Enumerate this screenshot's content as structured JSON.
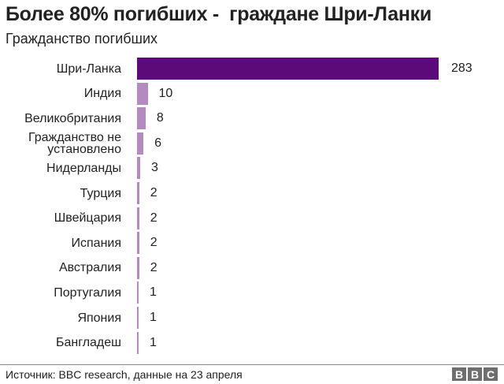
{
  "header": {
    "title": "Более 80% погибших -  граждане Шри-Ланки",
    "subtitle": "Гражданство погибших"
  },
  "footer": {
    "source": "Источник: BBC research, данные на 23 апреля",
    "logo": [
      "B",
      "B",
      "C"
    ]
  },
  "colors": {
    "highlight": "#5c0a7a",
    "other": "#b48bc0"
  },
  "chart_data": {
    "type": "bar",
    "orientation": "horizontal",
    "title": "Более 80% погибших -  граждане Шри-Ланки",
    "subtitle": "Гражданство погибших",
    "xlabel": "",
    "ylabel": "",
    "categories": [
      "Шри-Ланка",
      "Индия",
      "Великобритания",
      "Гражданство не установлено",
      "Нидерланды",
      "Турция",
      "Швейцария",
      "Испания",
      "Австралия",
      "Португалия",
      "Япония",
      "Бангладеш"
    ],
    "values": [
      283,
      10,
      8,
      6,
      3,
      2,
      2,
      2,
      2,
      1,
      1,
      1
    ],
    "labels": [
      "283",
      "10",
      "8",
      "6",
      "3",
      "2",
      "2",
      "2",
      "2",
      "1",
      "1",
      "1"
    ],
    "grid": false,
    "legend": null,
    "source": "Источник: BBC research, данные на 23 апреля"
  }
}
